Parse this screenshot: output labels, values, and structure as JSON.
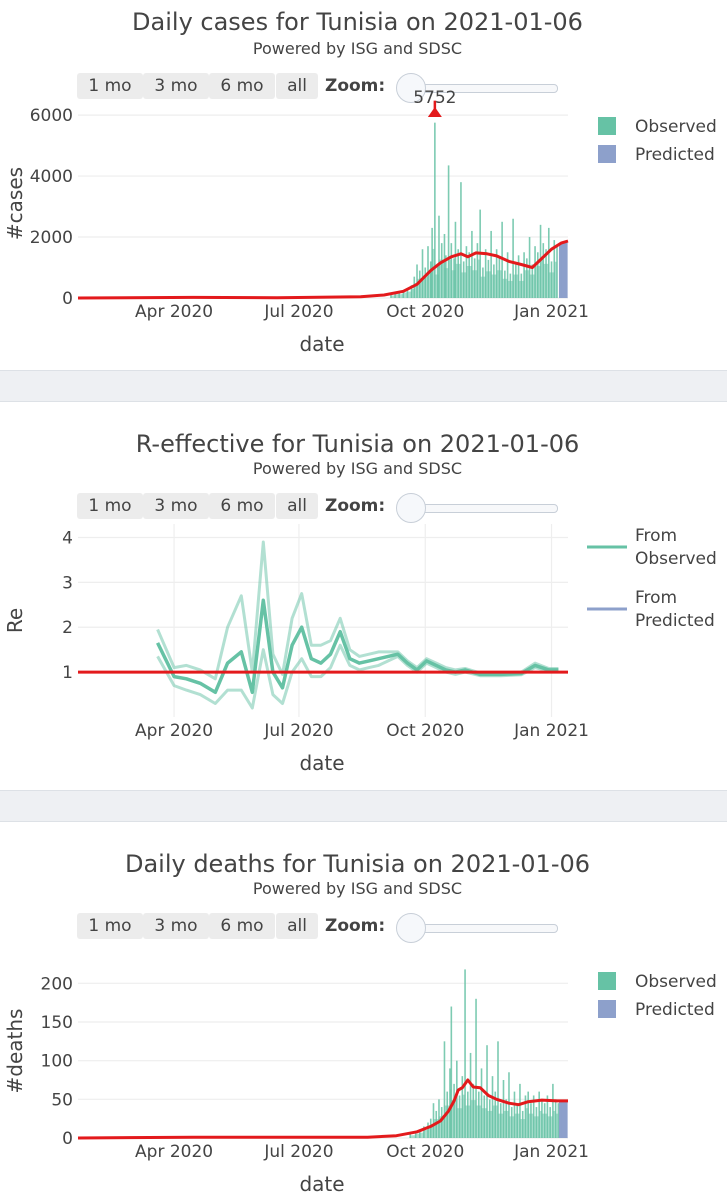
{
  "controls": {
    "buttons": [
      "1 mo",
      "3 mo",
      "6 mo",
      "all"
    ],
    "zoom_label": "Zoom:"
  },
  "colors": {
    "observed": "#66c2a5",
    "predicted": "#8da0cb",
    "trend": "#e31a1c",
    "grid": "#eeeeee"
  },
  "chart_data": [
    {
      "type": "bar",
      "title": "Daily cases for Tunisia on 2021-01-06",
      "subtitle": "Powered by ISG and SDSC",
      "xlabel": "date",
      "ylabel": "#cases",
      "ylim": [
        0,
        6200
      ],
      "yticks": [
        0,
        2000,
        4000,
        6000
      ],
      "xlim": [
        "2020-01-22",
        "2021-01-13"
      ],
      "xticks": [
        {
          "date": "2020-04-01",
          "label": "Apr 2020"
        },
        {
          "date": "2020-07-01",
          "label": "Jul 2020"
        },
        {
          "date": "2020-10-01",
          "label": "Oct 2020"
        },
        {
          "date": "2021-01-01",
          "label": "Jan 2021"
        }
      ],
      "legend": [
        "Observed",
        "Predicted"
      ],
      "legend_position": "top-right",
      "annotation": {
        "date": "2020-10-08",
        "value": 5752,
        "text": "5752"
      },
      "observed_bars": [
        {
          "date": "2020-09-06",
          "v": 120
        },
        {
          "date": "2020-09-09",
          "v": 200
        },
        {
          "date": "2020-09-12",
          "v": 180
        },
        {
          "date": "2020-09-15",
          "v": 260
        },
        {
          "date": "2020-09-18",
          "v": 300
        },
        {
          "date": "2020-09-21",
          "v": 420
        },
        {
          "date": "2020-09-23",
          "v": 700
        },
        {
          "date": "2020-09-25",
          "v": 1100
        },
        {
          "date": "2020-09-27",
          "v": 900
        },
        {
          "date": "2020-09-29",
          "v": 1600
        },
        {
          "date": "2020-10-01",
          "v": 1000
        },
        {
          "date": "2020-10-03",
          "v": 1700
        },
        {
          "date": "2020-10-05",
          "v": 1200
        },
        {
          "date": "2020-10-06",
          "v": 2300
        },
        {
          "date": "2020-10-08",
          "v": 5752
        },
        {
          "date": "2020-10-10",
          "v": 1100
        },
        {
          "date": "2020-10-11",
          "v": 2700
        },
        {
          "date": "2020-10-13",
          "v": 1800
        },
        {
          "date": "2020-10-15",
          "v": 2100
        },
        {
          "date": "2020-10-16",
          "v": 1400
        },
        {
          "date": "2020-10-18",
          "v": 4350
        },
        {
          "date": "2020-10-20",
          "v": 1800
        },
        {
          "date": "2020-10-22",
          "v": 1300
        },
        {
          "date": "2020-10-23",
          "v": 2500
        },
        {
          "date": "2020-10-25",
          "v": 1600
        },
        {
          "date": "2020-10-27",
          "v": 3800
        },
        {
          "date": "2020-10-29",
          "v": 1200
        },
        {
          "date": "2020-10-31",
          "v": 1700
        },
        {
          "date": "2020-11-02",
          "v": 1500
        },
        {
          "date": "2020-11-04",
          "v": 2200
        },
        {
          "date": "2020-11-06",
          "v": 1300
        },
        {
          "date": "2020-11-08",
          "v": 1800
        },
        {
          "date": "2020-11-10",
          "v": 2900
        },
        {
          "date": "2020-11-12",
          "v": 1000
        },
        {
          "date": "2020-11-14",
          "v": 1600
        },
        {
          "date": "2020-11-16",
          "v": 1250
        },
        {
          "date": "2020-11-18",
          "v": 2200
        },
        {
          "date": "2020-11-20",
          "v": 1100
        },
        {
          "date": "2020-11-22",
          "v": 1600
        },
        {
          "date": "2020-11-24",
          "v": 1300
        },
        {
          "date": "2020-11-26",
          "v": 2500
        },
        {
          "date": "2020-11-28",
          "v": 900
        },
        {
          "date": "2020-11-30",
          "v": 1500
        },
        {
          "date": "2020-12-02",
          "v": 800
        },
        {
          "date": "2020-12-04",
          "v": 2600
        },
        {
          "date": "2020-12-06",
          "v": 1100
        },
        {
          "date": "2020-12-08",
          "v": 1400
        },
        {
          "date": "2020-12-10",
          "v": 800
        },
        {
          "date": "2020-12-12",
          "v": 1500
        },
        {
          "date": "2020-12-14",
          "v": 1300
        },
        {
          "date": "2020-12-16",
          "v": 2000
        },
        {
          "date": "2020-12-18",
          "v": 1100
        },
        {
          "date": "2020-12-20",
          "v": 1700
        },
        {
          "date": "2020-12-22",
          "v": 1500
        },
        {
          "date": "2020-12-24",
          "v": 2400
        },
        {
          "date": "2020-12-26",
          "v": 1800
        },
        {
          "date": "2020-12-28",
          "v": 1600
        },
        {
          "date": "2020-12-30",
          "v": 2300
        },
        {
          "date": "2021-01-01",
          "v": 1200
        },
        {
          "date": "2021-01-03",
          "v": 1900
        },
        {
          "date": "2021-01-05",
          "v": 1700
        }
      ],
      "predicted_bars": [
        {
          "date": "2021-01-07",
          "v": 1800
        },
        {
          "date": "2021-01-08",
          "v": 1820
        },
        {
          "date": "2021-01-09",
          "v": 1840
        },
        {
          "date": "2021-01-10",
          "v": 1850
        },
        {
          "date": "2021-01-11",
          "v": 1860
        },
        {
          "date": "2021-01-12",
          "v": 1870
        }
      ],
      "trend": [
        {
          "date": "2020-01-22",
          "v": 0
        },
        {
          "date": "2020-04-15",
          "v": 20
        },
        {
          "date": "2020-06-15",
          "v": 10
        },
        {
          "date": "2020-08-15",
          "v": 40
        },
        {
          "date": "2020-09-01",
          "v": 100
        },
        {
          "date": "2020-09-15",
          "v": 220
        },
        {
          "date": "2020-09-25",
          "v": 450
        },
        {
          "date": "2020-10-05",
          "v": 900
        },
        {
          "date": "2020-10-12",
          "v": 1150
        },
        {
          "date": "2020-10-20",
          "v": 1350
        },
        {
          "date": "2020-10-27",
          "v": 1450
        },
        {
          "date": "2020-11-01",
          "v": 1350
        },
        {
          "date": "2020-11-07",
          "v": 1480
        },
        {
          "date": "2020-11-15",
          "v": 1450
        },
        {
          "date": "2020-11-22",
          "v": 1380
        },
        {
          "date": "2020-12-01",
          "v": 1200
        },
        {
          "date": "2020-12-10",
          "v": 1100
        },
        {
          "date": "2020-12-18",
          "v": 1000
        },
        {
          "date": "2020-12-25",
          "v": 1300
        },
        {
          "date": "2021-01-01",
          "v": 1600
        },
        {
          "date": "2021-01-08",
          "v": 1800
        },
        {
          "date": "2021-01-13",
          "v": 1870
        }
      ]
    },
    {
      "type": "line",
      "title": "R-effective for Tunisia on 2021-01-06",
      "subtitle": "Powered by ISG and SDSC",
      "xlabel": "date",
      "ylabel": "Re",
      "ylim": [
        0,
        4.3
      ],
      "yticks": [
        1,
        2,
        3,
        4
      ],
      "xlim": [
        "2020-01-22",
        "2021-01-13"
      ],
      "xticks": [
        {
          "date": "2020-04-01",
          "label": "Apr 2020"
        },
        {
          "date": "2020-07-01",
          "label": "Jul 2020"
        },
        {
          "date": "2020-10-01",
          "label": "Oct 2020"
        },
        {
          "date": "2021-01-01",
          "label": "Jan 2021"
        }
      ],
      "legend": [
        "From Observed",
        "From Predicted"
      ],
      "legend_position": "top-right",
      "reference_line": 1,
      "dates": [
        "2020-03-20",
        "2020-04-01",
        "2020-04-10",
        "2020-04-20",
        "2020-05-01",
        "2020-05-10",
        "2020-05-20",
        "2020-05-28",
        "2020-06-05",
        "2020-06-12",
        "2020-06-19",
        "2020-06-26",
        "2020-07-03",
        "2020-07-10",
        "2020-07-17",
        "2020-07-24",
        "2020-07-31",
        "2020-08-07",
        "2020-08-14",
        "2020-08-21",
        "2020-08-28",
        "2020-09-04",
        "2020-09-11",
        "2020-09-18",
        "2020-09-25",
        "2020-10-02",
        "2020-10-09",
        "2020-10-16",
        "2020-10-23",
        "2020-10-30",
        "2020-11-10",
        "2020-11-25",
        "2020-12-10",
        "2020-12-20",
        "2020-12-30",
        "2021-01-06"
      ],
      "median": [
        1.65,
        0.9,
        0.85,
        0.75,
        0.55,
        1.2,
        1.45,
        0.55,
        2.6,
        1.0,
        0.65,
        1.6,
        2.0,
        1.3,
        1.2,
        1.4,
        1.9,
        1.3,
        1.2,
        1.25,
        1.3,
        1.35,
        1.4,
        1.2,
        1.05,
        1.25,
        1.15,
        1.05,
        1.0,
        1.05,
        0.95,
        0.95,
        0.97,
        1.15,
        1.05,
        1.05
      ],
      "upper": [
        1.95,
        1.1,
        1.15,
        1.05,
        0.85,
        2.0,
        2.7,
        1.0,
        3.9,
        1.4,
        0.95,
        2.2,
        2.75,
        1.6,
        1.6,
        1.7,
        2.2,
        1.5,
        1.35,
        1.4,
        1.45,
        1.45,
        1.45,
        1.25,
        1.1,
        1.3,
        1.2,
        1.1,
        1.05,
        1.08,
        0.98,
        0.98,
        1.0,
        1.2,
        1.08,
        1.08
      ],
      "lower": [
        1.35,
        0.7,
        0.6,
        0.5,
        0.3,
        0.6,
        0.6,
        0.2,
        1.5,
        0.5,
        0.3,
        1.0,
        1.3,
        0.9,
        0.9,
        1.1,
        1.6,
        1.15,
        1.05,
        1.1,
        1.15,
        1.25,
        1.35,
        1.15,
        1.0,
        1.2,
        1.1,
        1.0,
        0.95,
        1.0,
        0.92,
        0.92,
        0.94,
        1.1,
        1.02,
        1.02
      ]
    },
    {
      "type": "bar",
      "title": "Daily deaths for Tunisia on 2021-01-06",
      "subtitle": "Powered by ISG and SDSC",
      "xlabel": "date",
      "ylabel": "#deaths",
      "ylim": [
        0,
        225
      ],
      "yticks": [
        0,
        50,
        100,
        150,
        200
      ],
      "xlim": [
        "2020-01-22",
        "2021-01-13"
      ],
      "xticks": [
        {
          "date": "2020-04-01",
          "label": "Apr 2020"
        },
        {
          "date": "2020-07-01",
          "label": "Jul 2020"
        },
        {
          "date": "2020-10-01",
          "label": "Oct 2020"
        },
        {
          "date": "2021-01-01",
          "label": "Jan 2021"
        }
      ],
      "legend": [
        "Observed",
        "Predicted"
      ],
      "legend_position": "top-right",
      "observed_bars": [
        {
          "date": "2020-09-20",
          "v": 5
        },
        {
          "date": "2020-09-24",
          "v": 8
        },
        {
          "date": "2020-09-27",
          "v": 10
        },
        {
          "date": "2020-09-30",
          "v": 15
        },
        {
          "date": "2020-10-03",
          "v": 20
        },
        {
          "date": "2020-10-05",
          "v": 25
        },
        {
          "date": "2020-10-07",
          "v": 45
        },
        {
          "date": "2020-10-09",
          "v": 35
        },
        {
          "date": "2020-10-11",
          "v": 50
        },
        {
          "date": "2020-10-13",
          "v": 40
        },
        {
          "date": "2020-10-15",
          "v": 125
        },
        {
          "date": "2020-10-17",
          "v": 60
        },
        {
          "date": "2020-10-19",
          "v": 90
        },
        {
          "date": "2020-10-20",
          "v": 170
        },
        {
          "date": "2020-10-22",
          "v": 70
        },
        {
          "date": "2020-10-24",
          "v": 100
        },
        {
          "date": "2020-10-26",
          "v": 55
        },
        {
          "date": "2020-10-28",
          "v": 80
        },
        {
          "date": "2020-10-30",
          "v": 218
        },
        {
          "date": "2020-11-01",
          "v": 60
        },
        {
          "date": "2020-11-03",
          "v": 110
        },
        {
          "date": "2020-11-05",
          "v": 70
        },
        {
          "date": "2020-11-07",
          "v": 180
        },
        {
          "date": "2020-11-09",
          "v": 60
        },
        {
          "date": "2020-11-11",
          "v": 90
        },
        {
          "date": "2020-11-13",
          "v": 55
        },
        {
          "date": "2020-11-15",
          "v": 120
        },
        {
          "date": "2020-11-17",
          "v": 50
        },
        {
          "date": "2020-11-19",
          "v": 80
        },
        {
          "date": "2020-11-21",
          "v": 60
        },
        {
          "date": "2020-11-23",
          "v": 125
        },
        {
          "date": "2020-11-25",
          "v": 45
        },
        {
          "date": "2020-11-27",
          "v": 75
        },
        {
          "date": "2020-11-29",
          "v": 50
        },
        {
          "date": "2020-12-01",
          "v": 85
        },
        {
          "date": "2020-12-03",
          "v": 40
        },
        {
          "date": "2020-12-05",
          "v": 60
        },
        {
          "date": "2020-12-07",
          "v": 45
        },
        {
          "date": "2020-12-09",
          "v": 70
        },
        {
          "date": "2020-12-11",
          "v": 35
        },
        {
          "date": "2020-12-13",
          "v": 55
        },
        {
          "date": "2020-12-15",
          "v": 60
        },
        {
          "date": "2020-12-17",
          "v": 45
        },
        {
          "date": "2020-12-19",
          "v": 55
        },
        {
          "date": "2020-12-21",
          "v": 40
        },
        {
          "date": "2020-12-23",
          "v": 60
        },
        {
          "date": "2020-12-25",
          "v": 50
        },
        {
          "date": "2020-12-27",
          "v": 45
        },
        {
          "date": "2020-12-29",
          "v": 55
        },
        {
          "date": "2020-12-31",
          "v": 40
        },
        {
          "date": "2021-01-02",
          "v": 70
        },
        {
          "date": "2021-01-04",
          "v": 50
        },
        {
          "date": "2021-01-06",
          "v": 45
        }
      ],
      "predicted_bars": [
        {
          "date": "2021-01-07",
          "v": 48
        },
        {
          "date": "2021-01-08",
          "v": 48
        },
        {
          "date": "2021-01-09",
          "v": 48
        },
        {
          "date": "2021-01-10",
          "v": 48
        },
        {
          "date": "2021-01-11",
          "v": 48
        },
        {
          "date": "2021-01-12",
          "v": 48
        }
      ],
      "trend": [
        {
          "date": "2020-01-22",
          "v": 0
        },
        {
          "date": "2020-04-15",
          "v": 1
        },
        {
          "date": "2020-08-20",
          "v": 1
        },
        {
          "date": "2020-09-10",
          "v": 3
        },
        {
          "date": "2020-09-25",
          "v": 8
        },
        {
          "date": "2020-10-05",
          "v": 15
        },
        {
          "date": "2020-10-12",
          "v": 22
        },
        {
          "date": "2020-10-18",
          "v": 35
        },
        {
          "date": "2020-10-22",
          "v": 48
        },
        {
          "date": "2020-10-25",
          "v": 62
        },
        {
          "date": "2020-10-28",
          "v": 65
        },
        {
          "date": "2020-11-01",
          "v": 75
        },
        {
          "date": "2020-11-05",
          "v": 66
        },
        {
          "date": "2020-11-10",
          "v": 65
        },
        {
          "date": "2020-11-16",
          "v": 55
        },
        {
          "date": "2020-11-22",
          "v": 50
        },
        {
          "date": "2020-12-01",
          "v": 45
        },
        {
          "date": "2020-12-08",
          "v": 43
        },
        {
          "date": "2020-12-15",
          "v": 47
        },
        {
          "date": "2020-12-25",
          "v": 49
        },
        {
          "date": "2021-01-05",
          "v": 48
        },
        {
          "date": "2021-01-13",
          "v": 48
        }
      ]
    }
  ]
}
